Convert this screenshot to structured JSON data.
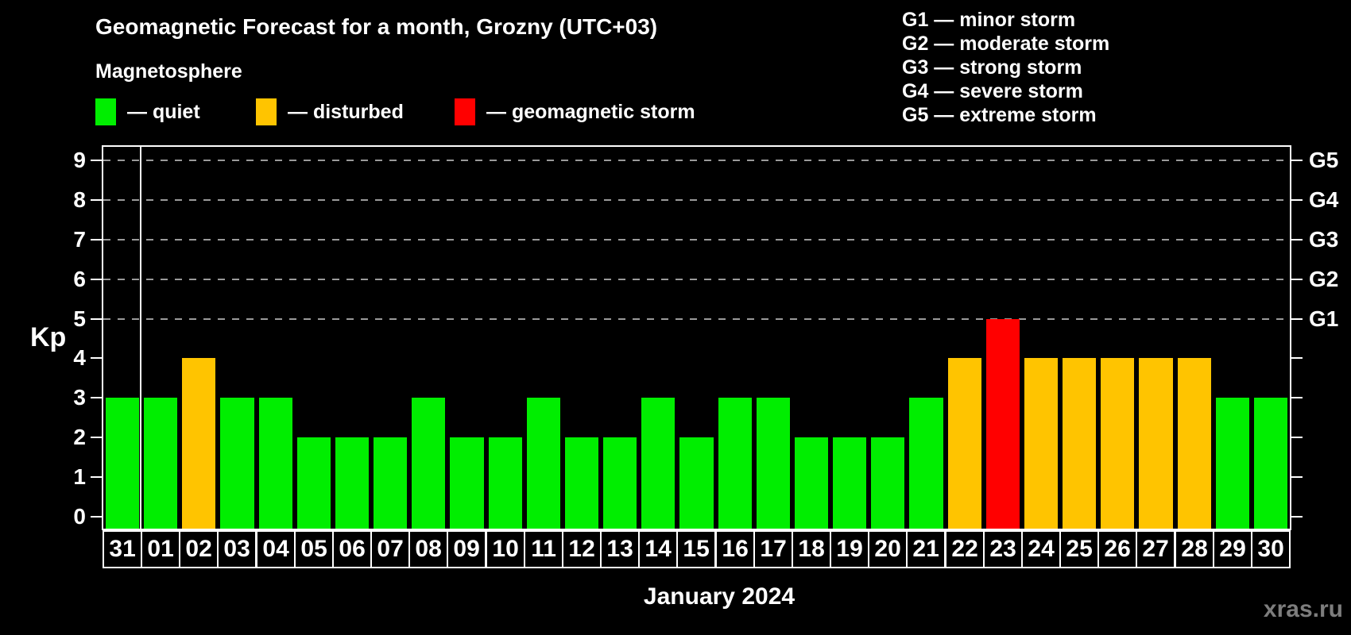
{
  "title": "Geomagnetic Forecast for a month, Grozny (UTC+03)",
  "subtitle": "Magnetosphere",
  "watermark": "xras.ru",
  "kp_legend": [
    {
      "status": "quiet",
      "label": "— quiet"
    },
    {
      "status": "disturbed",
      "label": "— disturbed"
    },
    {
      "status": "storm",
      "label": "— geomagnetic storm"
    }
  ],
  "g_scale_legend": [
    "G1 — minor storm",
    "G2 — moderate storm",
    "G3 — strong storm",
    "G4 — severe storm",
    "G5 — extreme storm"
  ],
  "palette": {
    "quiet": "#00ee00",
    "disturbed": "#ffc400",
    "storm": "#ff0000",
    "axis": "#ffffff",
    "grid": "#9a9a9a",
    "background": "#000000",
    "watermark_color": "#7d7d7d"
  },
  "chart_data": {
    "type": "bar",
    "title": "Geomagnetic Forecast for a month, Grozny (UTC+03)",
    "xlabel": "January 2024",
    "ylabel": "Kp",
    "categories": [
      "31",
      "01",
      "02",
      "03",
      "04",
      "05",
      "06",
      "07",
      "08",
      "09",
      "10",
      "11",
      "12",
      "13",
      "14",
      "15",
      "16",
      "17",
      "18",
      "19",
      "20",
      "21",
      "22",
      "23",
      "24",
      "25",
      "26",
      "27",
      "28",
      "29",
      "30"
    ],
    "values": [
      3,
      3,
      4,
      3,
      3,
      2,
      2,
      2,
      3,
      2,
      2,
      3,
      2,
      2,
      3,
      2,
      3,
      3,
      2,
      2,
      2,
      3,
      4,
      5,
      4,
      4,
      4,
      4,
      4,
      3,
      3
    ],
    "color_rule": {
      "storm_min_kp": 5,
      "disturbed_kp": 4,
      "quiet_max_kp": 3
    },
    "ylim": [
      0,
      9.4
    ],
    "yticks": [
      0,
      1,
      2,
      3,
      4,
      5,
      6,
      7,
      8,
      9
    ],
    "right_axis_ticks": [
      {
        "value": 5,
        "label": "G1"
      },
      {
        "value": 6,
        "label": "G2"
      },
      {
        "value": 7,
        "label": "G3"
      },
      {
        "value": 8,
        "label": "G4"
      },
      {
        "value": 9,
        "label": "G5"
      }
    ],
    "gridlines_at": [
      5,
      6,
      7,
      8,
      9
    ],
    "grid_style": "dashed",
    "month_separator_after_category": "31",
    "legend_position": "top-left",
    "g_legend_position": "top-right"
  }
}
